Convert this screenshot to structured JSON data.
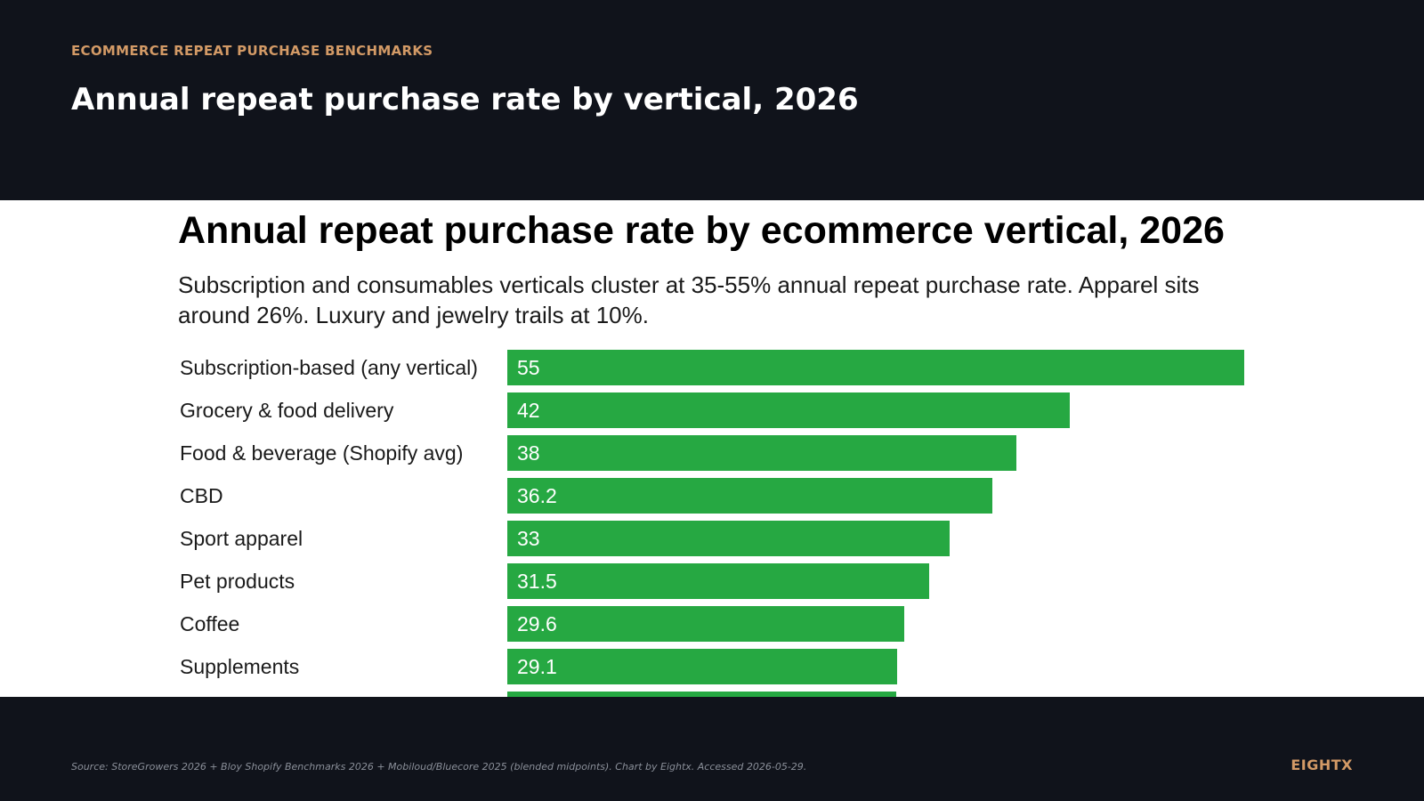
{
  "header": {
    "eyebrow": "ECOMMERCE REPEAT PURCHASE BENCHMARKS",
    "title": "Annual repeat purchase rate by vertical, 2026"
  },
  "chart_data": {
    "type": "bar",
    "orientation": "horizontal",
    "title": "Annual repeat purchase rate by ecommerce vertical, 2026",
    "subtitle": "Subscription and consumables verticals cluster at 35-55% annual repeat purchase rate. Apparel sits around 26%. Luxury and jewelry trails at 10%.",
    "categories": [
      "Subscription-based (any vertical)",
      "Grocery & food delivery",
      "Food & beverage (Shopify avg)",
      "CBD",
      "Sport apparel",
      "Pet products",
      "Coffee",
      "Supplements"
    ],
    "values": [
      55,
      42,
      38,
      36.2,
      33,
      31.5,
      29.6,
      29.1
    ],
    "value_labels": [
      "55",
      "42",
      "38",
      "36.2",
      "33",
      "31.5",
      "29.6",
      "29.1"
    ],
    "truncated_next_value": 29,
    "bar_color": "#26a842",
    "xlim": [
      0,
      55
    ],
    "grid": false,
    "legend": "none"
  },
  "footer": {
    "source": "Source: StoreGrowers 2026 + Bloy Shopify Benchmarks 2026 + Mobiloud/Bluecore 2025 (blended midpoints). Chart by Eightx. Accessed 2026-05-29.",
    "brand": "EIGHTX"
  },
  "colors": {
    "background": "#10131b",
    "accent": "#d39a66",
    "bar": "#26a842"
  }
}
